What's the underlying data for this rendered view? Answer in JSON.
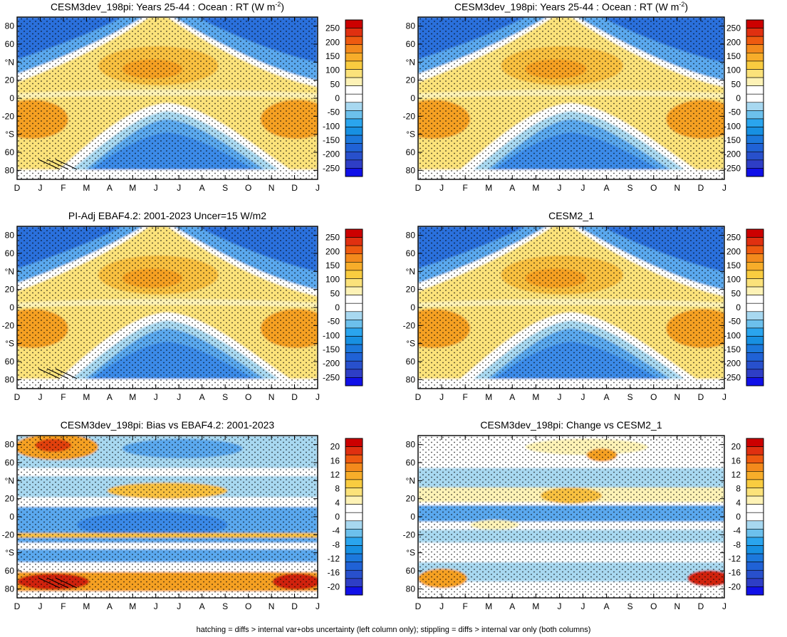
{
  "panels": [
    {
      "id": "p1",
      "title": "CESM3dev_198pi: Years 25-44 : Ocean : RT (W m",
      "title_sup": "-2",
      "title_close": ")",
      "kind": "abs"
    },
    {
      "id": "p2",
      "title": "CESM3dev_198pi: Years 25-44 : Ocean : RT (W m",
      "title_sup": "-2",
      "title_close": ")",
      "kind": "abs"
    },
    {
      "id": "p3",
      "title": "PI-Adj EBAF4.2: 2001-2023 Uncer=15 W/m2",
      "title_sup": "",
      "title_close": "",
      "kind": "abs"
    },
    {
      "id": "p4",
      "title": "CESM2_1",
      "title_sup": "",
      "title_close": "",
      "kind": "abs"
    },
    {
      "id": "p5",
      "title": "CESM3dev_198pi: Bias vs EBAF4.2: 2001-2023",
      "title_sup": "",
      "title_close": "",
      "kind": "diff"
    },
    {
      "id": "p6",
      "title": "CESM3dev_198pi: Change vs CESM2_1",
      "title_sup": "",
      "title_close": "",
      "kind": "diff"
    }
  ],
  "chart_data": {
    "type": "heatmap",
    "x_tick_labels": [
      "D",
      "J",
      "F",
      "M",
      "A",
      "M",
      "J",
      "J",
      "A",
      "S",
      "O",
      "N",
      "D",
      "J"
    ],
    "y_ticks": [
      80,
      60,
      40,
      20,
      0,
      -20,
      -40,
      -60,
      -80
    ],
    "y_tick_labels": [
      "80",
      "60",
      "°N",
      "20",
      "0",
      "-20",
      "°S",
      "60",
      "80"
    ],
    "ylim": [
      -90,
      90
    ],
    "colorbar_abs": {
      "labels": [
        "250",
        "200",
        "150",
        "100",
        "50",
        "0",
        "-50",
        "-100",
        "-150",
        "-200",
        "-250"
      ],
      "colors": [
        "#cc0000",
        "#e03010",
        "#ee5a10",
        "#f38a1c",
        "#f7ad2a",
        "#f9cc40",
        "#fbe27a",
        "#fdf2b6",
        "#ffffff",
        "#ffffff",
        "#a8d8f0",
        "#6cc0ec",
        "#2aa5ee",
        "#1790e2",
        "#1c78dc",
        "#2062d6",
        "#2850cc",
        "#2e3ec6",
        "#1010e8"
      ]
    },
    "colorbar_diff": {
      "labels": [
        "20",
        "16",
        "12",
        "8",
        "4",
        "0",
        "-4",
        "-8",
        "-12",
        "-16",
        "-20"
      ],
      "colors": [
        "#cc0000",
        "#e03010",
        "#ee5a10",
        "#f38a1c",
        "#f7ad2a",
        "#f9cc40",
        "#fbe27a",
        "#fdf2b6",
        "#ffffff",
        "#ffffff",
        "#a8d8f0",
        "#6cc0ec",
        "#2aa5ee",
        "#1790e2",
        "#1c78dc",
        "#2062d6",
        "#2850cc",
        "#2e3ec6",
        "#1010e8"
      ]
    }
  },
  "footnote": "hatching = diffs > internal var+obs uncertainty (left column only); stippling = diffs > internal var only (both columns)"
}
